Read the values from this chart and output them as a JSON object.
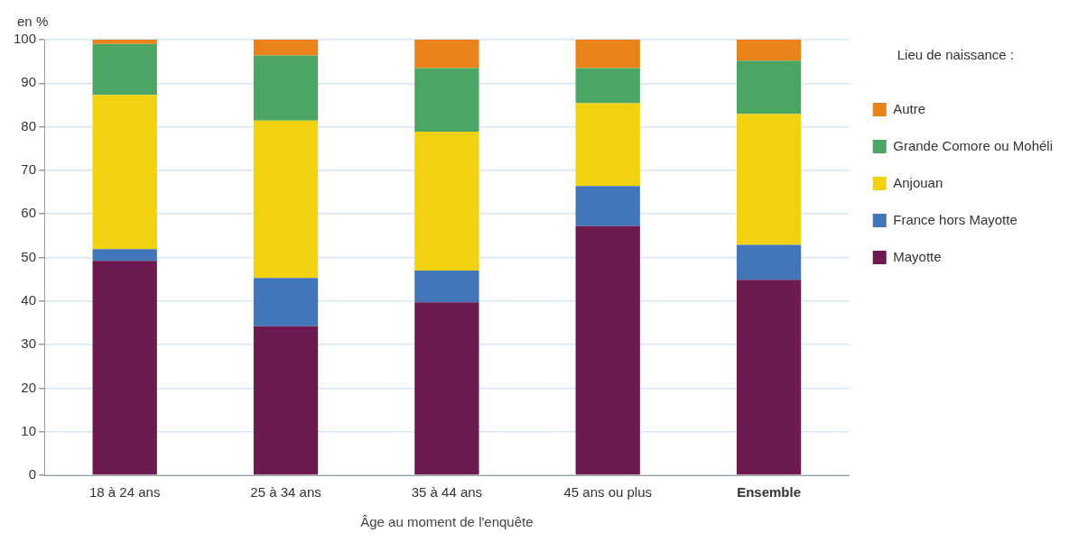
{
  "chart_data": {
    "type": "bar",
    "ylabel": "en %",
    "xlabel": "Âge au moment de l'enquête",
    "legend_title": "Lieu de naissance :",
    "stacked": true,
    "legend": "right",
    "grid": "y",
    "categories": [
      "18 à 24 ans",
      "25 à 34 ans",
      "35 à 44 ans",
      "45 ans ou plus",
      "Ensemble"
    ],
    "ylim": [
      0,
      100
    ],
    "yticks": [
      0,
      10,
      20,
      30,
      40,
      50,
      60,
      70,
      80,
      90,
      100
    ],
    "series": [
      {
        "name": "Mayotte",
        "color": "#6d1a50",
        "values": [
          49.2,
          34.2,
          39.7,
          57.2,
          44.9
        ]
      },
      {
        "name": "France hors Mayotte",
        "color": "#4376b8",
        "values": [
          2.7,
          11.1,
          7.3,
          9.2,
          8.0
        ]
      },
      {
        "name": "Anjouan",
        "color": "#f2d210",
        "values": [
          35.4,
          36.1,
          31.9,
          19.0,
          30.0
        ]
      },
      {
        "name": "Grande Comore ou Mohéli",
        "color": "#4ba563",
        "values": [
          11.7,
          15.0,
          14.6,
          8.1,
          12.3
        ]
      },
      {
        "name": "Autre",
        "color": "#e98218",
        "values": [
          1.0,
          3.6,
          6.5,
          6.5,
          4.8
        ]
      }
    ]
  }
}
